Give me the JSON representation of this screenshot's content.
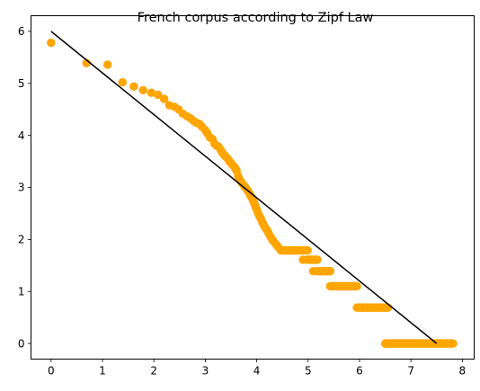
{
  "chart_data": {
    "type": "scatter",
    "title": "French corpus according to Zipf Law",
    "xlabel": "",
    "ylabel": "",
    "xlim": [
      -0.39,
      8.23
    ],
    "ylim": [
      -0.3,
      6.3
    ],
    "xticks": [
      0,
      1,
      2,
      3,
      4,
      5,
      6,
      7,
      8
    ],
    "yticks": [
      0,
      1,
      2,
      3,
      4,
      5,
      6
    ],
    "grid": false,
    "legend": "none",
    "colors": {
      "points": "#ffa500",
      "line": "#000000"
    },
    "series": [
      {
        "kind": "points",
        "x": [
          0.0,
          0.69,
          1.1,
          1.39,
          1.61,
          1.79,
          1.95,
          2.08,
          2.2,
          2.3,
          2.4,
          2.48,
          2.56,
          2.64,
          2.71,
          2.77,
          2.83,
          2.89,
          2.94,
          3.0,
          3.04,
          3.09,
          3.14,
          3.18,
          3.22,
          3.26,
          3.3,
          3.33,
          3.37,
          3.4,
          3.43,
          3.47,
          3.5,
          3.53,
          3.56,
          3.58,
          3.61,
          3.64,
          3.66,
          3.69,
          3.71,
          3.74,
          3.76,
          3.78,
          3.81,
          3.83,
          3.85,
          3.87,
          3.89,
          3.91,
          3.93,
          3.95,
          3.97,
          3.99,
          4.01,
          4.03,
          4.05,
          4.07,
          4.09,
          4.11,
          4.13,
          4.15,
          4.17,
          4.2,
          4.23,
          4.27,
          4.3,
          4.34,
          4.38,
          4.42,
          4.47,
          4.52,
          4.58,
          4.65,
          4.72,
          4.8,
          4.9,
          5.0,
          5.1,
          5.2,
          5.35,
          5.5,
          5.7,
          5.9,
          6.1,
          6.3,
          6.5
        ],
        "y": [
          5.78,
          5.39,
          5.36,
          5.02,
          4.94,
          4.87,
          4.82,
          4.78,
          4.7,
          4.58,
          4.55,
          4.5,
          4.42,
          4.37,
          4.33,
          4.28,
          4.24,
          4.22,
          4.16,
          4.1,
          4.04,
          3.96,
          3.93,
          3.84,
          3.8,
          3.78,
          3.72,
          3.67,
          3.62,
          3.59,
          3.56,
          3.5,
          3.47,
          3.43,
          3.4,
          3.37,
          3.32,
          3.22,
          3.16,
          3.12,
          3.09,
          3.05,
          3.02,
          3.0,
          2.96,
          2.93,
          2.9,
          2.86,
          2.82,
          2.79,
          2.75,
          2.7,
          2.65,
          2.6,
          2.55,
          2.5,
          2.45,
          2.42,
          2.38,
          2.33,
          2.29,
          2.25,
          2.22,
          2.18,
          2.12,
          2.05,
          2.0,
          1.95,
          1.9,
          1.85,
          1.79,
          1.79,
          1.79,
          1.79,
          1.79,
          1.79,
          1.61,
          1.61,
          1.39,
          1.39,
          1.39,
          1.1,
          1.1,
          1.1,
          0.69,
          0.69,
          0.69
        ],
        "ranges": [
          {
            "y": 1.79,
            "x": [
              4.5,
              4.99
            ]
          },
          {
            "y": 1.61,
            "x": [
              4.99,
              5.18
            ]
          },
          {
            "y": 1.39,
            "x": [
              5.18,
              5.43
            ]
          },
          {
            "y": 1.1,
            "x": [
              5.43,
              5.95
            ]
          },
          {
            "y": 0.69,
            "x": [
              5.95,
              6.55
            ]
          },
          {
            "y": 0.0,
            "x": [
              6.5,
              7.82
            ]
          }
        ]
      },
      {
        "kind": "line",
        "x": [
          0,
          7.5
        ],
        "y": [
          6,
          0
        ]
      }
    ]
  }
}
